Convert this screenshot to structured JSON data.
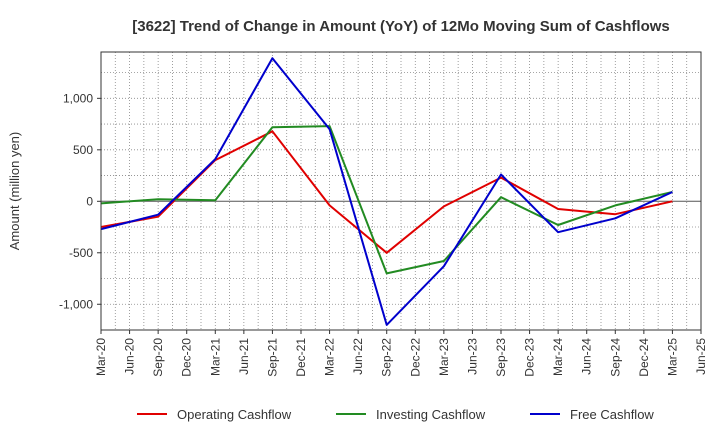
{
  "chart_data": {
    "type": "line",
    "title": "[3622]  Trend of Change in Amount (YoY) of 12Mo Moving Sum of Cashflows",
    "xlabel": "",
    "ylabel": "Amount (million yen)",
    "categories": [
      "Mar-20",
      "Jun-20",
      "Sep-20",
      "Dec-20",
      "Mar-21",
      "Jun-21",
      "Sep-21",
      "Dec-21",
      "Mar-22",
      "Jun-22",
      "Sep-22",
      "Dec-22",
      "Mar-23",
      "Jun-23",
      "Sep-23",
      "Dec-23",
      "Mar-24",
      "Jun-24",
      "Sep-24",
      "Dec-24",
      "Mar-25",
      "Jun-25"
    ],
    "ylim": [
      -1250,
      1450
    ],
    "yticks": [
      -1000,
      -500,
      0,
      500,
      1000
    ],
    "ytick_labels": [
      "-1,000",
      "-500",
      "0",
      "500",
      "1,000"
    ],
    "grid": true,
    "legend_position": "bottom",
    "series": [
      {
        "name": "Operating Cashflow",
        "color": "#e00000",
        "values": [
          -250,
          null,
          -150,
          null,
          400,
          null,
          680,
          null,
          -40,
          null,
          -500,
          null,
          -50,
          null,
          230,
          null,
          -75,
          null,
          -125,
          null,
          0,
          null
        ]
      },
      {
        "name": "Investing Cashflow",
        "color": "#228b22",
        "values": [
          -20,
          null,
          20,
          null,
          10,
          null,
          720,
          null,
          730,
          null,
          -700,
          null,
          -580,
          null,
          40,
          null,
          -230,
          null,
          -40,
          null,
          90,
          null
        ]
      },
      {
        "name": "Free Cashflow",
        "color": "#0000cc",
        "values": [
          -270,
          null,
          -130,
          null,
          410,
          null,
          1390,
          null,
          700,
          null,
          -1200,
          null,
          -630,
          null,
          260,
          null,
          -300,
          null,
          -165,
          null,
          90,
          null
        ]
      }
    ]
  }
}
